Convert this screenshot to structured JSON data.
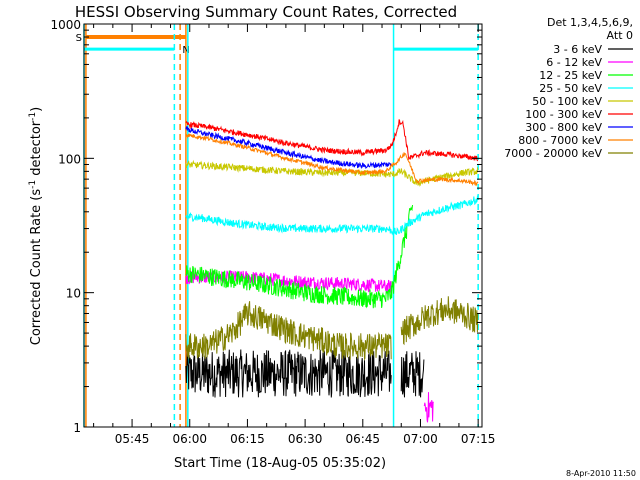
{
  "chart_data": {
    "type": "line",
    "title": "HESSI Observing Summary Count Rates, Corrected",
    "xlabel": "Start Time (18-Aug-05 05:35:02)",
    "ylabel_main": "Corrected Count Rate (s",
    "ylabel_sup1": "-1",
    "ylabel_mid": " detector",
    "ylabel_sup2": "-1",
    "ylabel_end": ")",
    "yscale": "log",
    "ylim": [
      1,
      1000
    ],
    "xlim_minutes": [
      -2.5,
      101
    ],
    "x_ticks": [
      {
        "m": 10,
        "label": "05:45"
      },
      {
        "m": 25,
        "label": "06:00"
      },
      {
        "m": 40,
        "label": "06:15"
      },
      {
        "m": 55,
        "label": "06:30"
      },
      {
        "m": 70,
        "label": "06:45"
      },
      {
        "m": 85,
        "label": "07:00"
      },
      {
        "m": 100,
        "label": "07:15"
      }
    ],
    "y_ticks": [
      {
        "v": 1,
        "label": "1"
      },
      {
        "v": 10,
        "label": "10"
      },
      {
        "v": 100,
        "label": "100"
      },
      {
        "v": 1000,
        "label": "1000"
      }
    ],
    "legend_header": [
      "Det 1,3,4,5,6,9,",
      "Att 0"
    ],
    "series": [
      {
        "name": "3 - 6 keV",
        "color": "#000000",
        "segments": [
          {
            "x": [
              24,
              40,
              55,
              70,
              77.5
            ],
            "y": [
              2.5,
              2.5,
              2.5,
              2.5,
              2.5
            ],
            "noise": 0.18
          },
          {
            "x": [
              80,
              86
            ],
            "y": [
              2.5,
              2.5
            ],
            "noise": 0.18
          }
        ]
      },
      {
        "name": "6 - 12 keV",
        "color": "#ff00ff",
        "segments": [
          {
            "x": [
              24,
              40,
              55,
              70,
              77.5
            ],
            "y": [
              13,
              13,
              12,
              11.5,
              11
            ],
            "noise": 0.05
          },
          {
            "x": [
              86,
              88.5
            ],
            "y": [
              1.4,
              1.4
            ],
            "noise": 0.12
          }
        ]
      },
      {
        "name": "12 - 25 keV",
        "color": "#00ff00",
        "segments": [
          {
            "x": [
              24,
              32,
              40,
              48,
              55,
              62,
              70,
              76,
              77.5,
              79,
              81.5,
              83
            ],
            "y": [
              14,
              13,
              12,
              11,
              10,
              9.5,
              9,
              9,
              10,
              15,
              30,
              45
            ],
            "noise": 0.07
          }
        ]
      },
      {
        "name": "25 - 50 keV",
        "color": "#00ffff",
        "segments": [
          {
            "x": [
              24,
              28,
              36,
              44,
              52,
              60,
              70,
              76,
              79,
              82,
              86,
              92,
              96,
              100
            ],
            "y": [
              37,
              36,
              33,
              31,
              30,
              30,
              30,
              30,
              28,
              33,
              38,
              43,
              45,
              50
            ],
            "noise": 0.03
          }
        ]
      },
      {
        "name": "50 - 100 keV",
        "color": "#c8c800",
        "segments": [
          {
            "x": [
              24,
              30,
              40,
              50,
              60,
              70,
              76,
              78,
              80,
              84,
              90,
              96,
              100
            ],
            "y": [
              90,
              88,
              84,
              80,
              78,
              78,
              76,
              76,
              80,
              65,
              72,
              78,
              80
            ],
            "noise": 0.025
          }
        ]
      },
      {
        "name": "100 - 300 keV",
        "color": "#ff0000",
        "segments": [
          {
            "x": [
              24,
              30,
              40,
              50,
              60,
              70,
              76,
              77.5,
              78.5,
              79.5,
              80.5,
              82,
              86,
              92,
              100
            ],
            "y": [
              180,
              170,
              150,
              130,
              115,
              110,
              115,
              125,
              150,
              190,
              180,
              100,
              110,
              107,
              100
            ],
            "noise": 0.02
          }
        ]
      },
      {
        "name": "300 - 800 keV",
        "color": "#0000ff",
        "segments": [
          {
            "x": [
              24,
              30,
              40,
              50,
              60,
              70,
              76,
              77.5
            ],
            "y": [
              165,
              150,
              130,
              110,
              95,
              88,
              90,
              90
            ],
            "noise": 0.02
          }
        ]
      },
      {
        "name": "800 - 7000 keV",
        "color": "#ff8000",
        "segments": [
          {
            "x": [
              24,
              30,
              40,
              50,
              60,
              70,
              76,
              79,
              81,
              84,
              90,
              96,
              100
            ],
            "y": [
              150,
              140,
              120,
              100,
              85,
              78,
              80,
              95,
              110,
              68,
              70,
              68,
              65
            ],
            "noise": 0.015
          }
        ]
      },
      {
        "name": "7000 - 20000 keV",
        "color": "#808000",
        "segments": [
          {
            "x": [
              24,
              30,
              36,
              40,
              46,
              52,
              58,
              64,
              70,
              76,
              77.5
            ],
            "y": [
              4,
              4,
              5,
              7,
              6,
              5,
              4.5,
              4,
              4,
              4,
              4
            ],
            "noise": 0.1
          },
          {
            "x": [
              80,
              84,
              88,
              92,
              96,
              100
            ],
            "y": [
              5,
              6,
              7,
              7.5,
              7,
              6
            ],
            "noise": 0.1
          }
        ]
      }
    ],
    "att_state": {
      "color": "#ff8000",
      "level": 800,
      "x_start": -2,
      "x_end": 24,
      "label": "S",
      "markers": [
        {
          "m": -2,
          "style": "solid"
        },
        {
          "m": 22.5,
          "style": "dashed"
        },
        {
          "m": 24,
          "style": "solid"
        }
      ]
    },
    "night_state": {
      "color": "#00ffff",
      "level": 650,
      "label": "N",
      "segments": [
        {
          "x_start": -2.5,
          "x_end": 21
        },
        {
          "x_start": 78,
          "x_end": 100
        }
      ],
      "markers": [
        {
          "m": -2.5,
          "style": "solid"
        },
        {
          "m": 21,
          "style": "dashed"
        },
        {
          "m": 24.5,
          "style": "solid"
        },
        {
          "m": 78,
          "style": "solid"
        },
        {
          "m": 100,
          "style": "dashed"
        }
      ]
    },
    "timestamp": "8-Apr-2010 11:50"
  }
}
